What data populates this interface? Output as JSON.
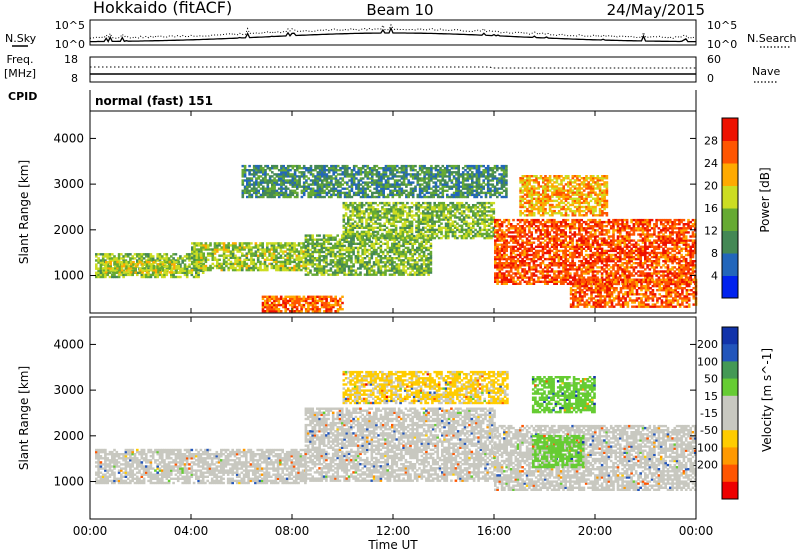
{
  "header": {
    "station": "Hokkaido (fitACF)",
    "beam": "Beam 10",
    "date": "24/May/2015"
  },
  "noise_panel": {
    "left_label": "N.Sky",
    "right_label": "N.Search",
    "ytick_top": "10^5",
    "ytick_bottom": "10^0"
  },
  "freq_panel": {
    "left_label_1": "Freq.",
    "left_label_2": "[MHz]",
    "left_ticks": [
      "18",
      "8"
    ],
    "right_ticks": [
      "60",
      "0"
    ],
    "right_label": "Nave"
  },
  "cpid_panel": {
    "label": "CPID",
    "mode": "normal (fast) 151"
  },
  "colors": {
    "power_scale": [
      "#0022ee",
      "#2266bb",
      "#448855",
      "#66aa33",
      "#ccdd22",
      "#ffaa00",
      "#ff5500",
      "#ee1100"
    ],
    "velocity_scale": [
      "#ee0000",
      "#ff5500",
      "#ff9900",
      "#ffcc00",
      "#c8c8c0",
      "#c8c8c0",
      "#66cc33",
      "#449955",
      "#2255bb",
      "#1122aa"
    ],
    "velocity_gs": "#c8c8c0"
  },
  "chart_data": [
    {
      "type": "heatmap",
      "title": "Power",
      "xlabel": "",
      "ylabel": "Slant Range [km]",
      "x_ticks": [
        "00:00",
        "04:00",
        "08:00",
        "12:00",
        "16:00",
        "20:00",
        "00:00"
      ],
      "y_ticks": [
        "1000",
        "2000",
        "3000",
        "4000"
      ],
      "xlim_hours": [
        0,
        24
      ],
      "ylim_km": [
        180,
        4600
      ],
      "colorbar": {
        "label": "Power [dB]",
        "ticks": [
          "4",
          "8",
          "12",
          "16",
          "20",
          "24",
          "28"
        ],
        "range": [
          0,
          32
        ]
      },
      "regions": [
        {
          "t0": 0.2,
          "t1": 4.5,
          "r0": 950,
          "r1": 1450,
          "level": 15
        },
        {
          "t0": 0.5,
          "t1": 3.5,
          "r0": 1050,
          "r1": 1300,
          "level": 18
        },
        {
          "t0": 4.0,
          "t1": 8.5,
          "r0": 1100,
          "r1": 1700,
          "level": 16
        },
        {
          "t0": 6.8,
          "t1": 10.0,
          "r0": 200,
          "r1": 550,
          "level": 26
        },
        {
          "t0": 8.5,
          "t1": 13.5,
          "r0": 1000,
          "r1": 1900,
          "level": 14
        },
        {
          "t0": 10.0,
          "t1": 16.0,
          "r0": 1800,
          "r1": 2600,
          "level": 15
        },
        {
          "t0": 6.0,
          "t1": 16.5,
          "r0": 2700,
          "r1": 3400,
          "level": 10
        },
        {
          "t0": 16.0,
          "t1": 24.0,
          "r0": 800,
          "r1": 2200,
          "level": 27
        },
        {
          "t0": 19.0,
          "t1": 24.0,
          "r0": 300,
          "r1": 900,
          "level": 26
        },
        {
          "t0": 17.0,
          "t1": 20.5,
          "r0": 2300,
          "r1": 3200,
          "level": 22
        }
      ]
    },
    {
      "type": "heatmap",
      "title": "Velocity",
      "xlabel": "Time UT",
      "ylabel": "Slant Range [km]",
      "x_ticks": [
        "00:00",
        "04:00",
        "08:00",
        "12:00",
        "16:00",
        "20:00",
        "00:00"
      ],
      "y_ticks": [
        "1000",
        "2000",
        "3000",
        "4000"
      ],
      "xlim_hours": [
        0,
        24
      ],
      "ylim_km": [
        180,
        4600
      ],
      "colorbar": {
        "label": "Velocity [m s^-1]",
        "ticks": [
          "200",
          "100",
          "50",
          "15",
          "-15",
          "-50",
          "-100",
          "-200"
        ],
        "range": [
          -250,
          250
        ]
      },
      "regions": [
        {
          "t0": 0.2,
          "t1": 8.5,
          "r0": 950,
          "r1": 1700,
          "value": 0
        },
        {
          "t0": 8.5,
          "t1": 16.0,
          "r0": 1000,
          "r1": 2600,
          "value": 0
        },
        {
          "t0": 16.0,
          "t1": 24.0,
          "r0": 800,
          "r1": 2200,
          "value": 0
        },
        {
          "t0": 17.5,
          "t1": 19.5,
          "r0": 1300,
          "r1": 2000,
          "value": 60
        },
        {
          "t0": 17.5,
          "t1": 20.0,
          "r0": 2500,
          "r1": 3300,
          "value": 60
        },
        {
          "t0": 10.0,
          "t1": 16.5,
          "r0": 2700,
          "r1": 3400,
          "value": -20
        }
      ]
    }
  ]
}
